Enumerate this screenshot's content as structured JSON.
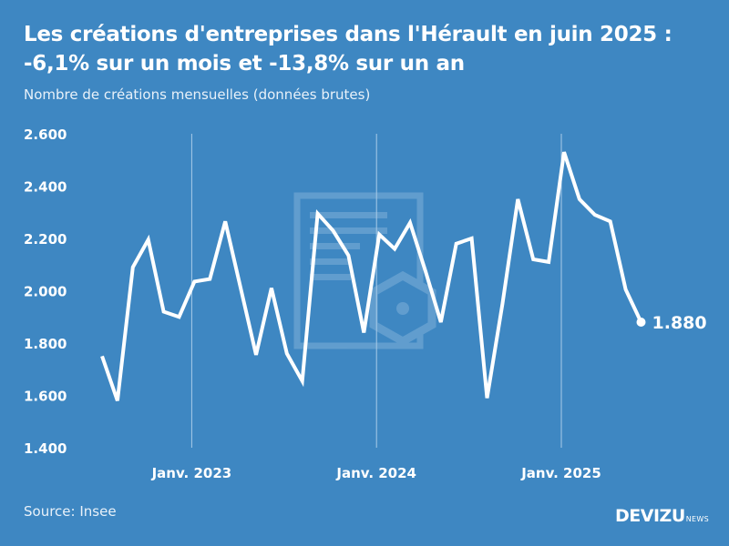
{
  "header": {
    "title": "Les créations d'entreprises dans l'Hérault en juin 2025 : -6,1% sur un mois et -13,8% sur un an",
    "subtitle": "Nombre de créations mensuelles (données brutes)"
  },
  "footer": {
    "source": "Source: Insee",
    "brand_main": "DEVIZU",
    "brand_sub": "NEWS"
  },
  "colors": {
    "background": "#3e87c2",
    "line": "#ffffff",
    "watermark": "#7fb0d9"
  },
  "watermark_icon": "document-gear-icon",
  "chart_data": {
    "type": "line",
    "title": "Les créations d'entreprises dans l'Hérault en juin 2025 : -6,1% sur un mois et -13,8% sur un an",
    "subtitle": "Nombre de créations mensuelles (données brutes)",
    "xlabel": "",
    "ylabel": "",
    "ylim": [
      1400,
      2600
    ],
    "yticks": [
      2600,
      2400,
      2200,
      2000,
      1800,
      1600,
      1400
    ],
    "ytick_labels": [
      "2.600",
      "2.400",
      "2.200",
      "2.000",
      "1.800",
      "1.600",
      "1.400"
    ],
    "grid": "vertical lines at January markers",
    "x_ticks": [
      {
        "label": "Janv. 2023",
        "index": 6
      },
      {
        "label": "Janv. 2024",
        "index": 18
      },
      {
        "label": "Janv. 2025",
        "index": 30
      }
    ],
    "x": [
      "2022-07",
      "2022-08",
      "2022-09",
      "2022-10",
      "2022-11",
      "2022-12",
      "2023-01",
      "2023-02",
      "2023-03",
      "2023-04",
      "2023-05",
      "2023-06",
      "2023-07",
      "2023-08",
      "2023-09",
      "2023-10",
      "2023-11",
      "2023-12",
      "2024-01",
      "2024-02",
      "2024-03",
      "2024-04",
      "2024-05",
      "2024-06",
      "2024-07",
      "2024-08",
      "2024-09",
      "2024-10",
      "2024-11",
      "2024-12",
      "2025-01",
      "2025-02",
      "2025-03",
      "2025-04",
      "2025-05",
      "2025-06"
    ],
    "values": [
      1750,
      1580,
      2090,
      2195,
      1920,
      1900,
      2035,
      2045,
      2265,
      2010,
      1755,
      2010,
      1760,
      1655,
      2295,
      2230,
      2135,
      1840,
      2215,
      2160,
      2260,
      2075,
      1880,
      2180,
      2200,
      1590,
      1950,
      2350,
      2120,
      2110,
      2530,
      2350,
      2290,
      2265,
      2005,
      1880
    ],
    "end_label": "1.880"
  }
}
